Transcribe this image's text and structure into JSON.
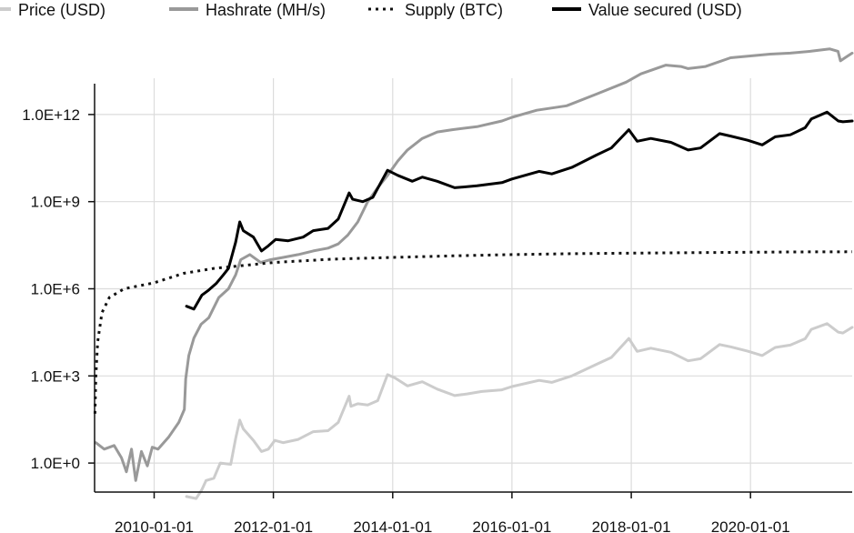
{
  "chart_data": {
    "type": "line",
    "title": "",
    "xlabel": "",
    "ylabel": "",
    "y_scale": "log10",
    "xlim": [
      "2009-01-01",
      "2021-09-15"
    ],
    "ylim": [
      0.1,
      100000000000000.0
    ],
    "grid": true,
    "legend_placement": "top",
    "x_ticks": [
      "2010-01-01",
      "2012-01-01",
      "2014-01-01",
      "2016-01-01",
      "2018-01-01",
      "2020-01-01"
    ],
    "y_ticks": [
      {
        "value": 1,
        "label": "1.0E+0"
      },
      {
        "value": 1000,
        "label": "1.0E+3"
      },
      {
        "value": 1000000,
        "label": "1.0E+6"
      },
      {
        "value": 1000000000,
        "label": "1.0E+9"
      },
      {
        "value": 1000000000000,
        "label": "1.0E+12"
      }
    ],
    "series": [
      {
        "name": "Price (USD)",
        "color": "#cccccc",
        "dash": "solid",
        "points": [
          [
            "2010-07-18",
            0.07
          ],
          [
            "2010-09-15",
            0.06
          ],
          [
            "2010-10-20",
            0.12
          ],
          [
            "2010-11-15",
            0.25
          ],
          [
            "2011-01-01",
            0.3
          ],
          [
            "2011-02-10",
            1.0
          ],
          [
            "2011-04-15",
            0.9
          ],
          [
            "2011-05-15",
            7
          ],
          [
            "2011-06-09",
            30
          ],
          [
            "2011-07-01",
            15
          ],
          [
            "2011-09-01",
            6
          ],
          [
            "2011-10-20",
            2.5
          ],
          [
            "2011-12-01",
            3
          ],
          [
            "2012-01-10",
            6
          ],
          [
            "2012-03-01",
            5
          ],
          [
            "2012-06-01",
            6.5
          ],
          [
            "2012-09-01",
            12
          ],
          [
            "2012-12-01",
            13
          ],
          [
            "2013-02-01",
            25
          ],
          [
            "2013-04-09",
            200
          ],
          [
            "2013-04-20",
            90
          ],
          [
            "2013-06-01",
            110
          ],
          [
            "2013-08-01",
            100
          ],
          [
            "2013-10-01",
            140
          ],
          [
            "2013-11-30",
            1100
          ],
          [
            "2014-01-15",
            850
          ],
          [
            "2014-04-01",
            450
          ],
          [
            "2014-07-01",
            630
          ],
          [
            "2014-10-01",
            350
          ],
          [
            "2015-01-15",
            210
          ],
          [
            "2015-04-01",
            240
          ],
          [
            "2015-07-01",
            290
          ],
          [
            "2015-11-01",
            330
          ],
          [
            "2016-01-01",
            430
          ],
          [
            "2016-06-15",
            700
          ],
          [
            "2016-09-01",
            600
          ],
          [
            "2017-01-01",
            1000
          ],
          [
            "2017-06-01",
            2500
          ],
          [
            "2017-09-01",
            4300
          ],
          [
            "2017-12-17",
            19500
          ],
          [
            "2018-02-06",
            7000
          ],
          [
            "2018-05-01",
            9000
          ],
          [
            "2018-09-01",
            6500
          ],
          [
            "2018-12-15",
            3300
          ],
          [
            "2019-03-01",
            3900
          ],
          [
            "2019-06-26",
            12000
          ],
          [
            "2019-09-01",
            10000
          ],
          [
            "2019-12-15",
            7100
          ],
          [
            "2020-03-13",
            5000
          ],
          [
            "2020-06-01",
            9500
          ],
          [
            "2020-09-01",
            11500
          ],
          [
            "2020-12-01",
            19000
          ],
          [
            "2021-01-08",
            40000
          ],
          [
            "2021-04-14",
            63000
          ],
          [
            "2021-06-22",
            32000
          ],
          [
            "2021-07-20",
            30000
          ],
          [
            "2021-09-15",
            47000
          ]
        ]
      },
      {
        "name": "Hashrate (MH/s)",
        "color": "#999999",
        "dash": "solid",
        "points": [
          [
            "2009-01-09",
            5
          ],
          [
            "2009-03-01",
            3
          ],
          [
            "2009-05-01",
            4
          ],
          [
            "2009-06-15",
            1.5
          ],
          [
            "2009-07-15",
            0.5
          ],
          [
            "2009-08-15",
            3
          ],
          [
            "2009-09-10",
            0.25
          ],
          [
            "2009-10-15",
            2.5
          ],
          [
            "2009-11-20",
            0.8
          ],
          [
            "2009-12-20",
            3.5
          ],
          [
            "2010-01-25",
            3
          ],
          [
            "2010-04-01",
            8
          ],
          [
            "2010-06-01",
            25
          ],
          [
            "2010-07-05",
            70
          ],
          [
            "2010-07-13",
            800
          ],
          [
            "2010-08-01",
            5000
          ],
          [
            "2010-09-01",
            20000
          ],
          [
            "2010-10-15",
            60000
          ],
          [
            "2010-12-01",
            100000
          ],
          [
            "2011-02-01",
            500000
          ],
          [
            "2011-04-01",
            1000000
          ],
          [
            "2011-05-15",
            3000000
          ],
          [
            "2011-06-15",
            10000000
          ],
          [
            "2011-08-10",
            15000000
          ],
          [
            "2011-10-15",
            8000000
          ],
          [
            "2011-12-15",
            10000000
          ],
          [
            "2012-03-01",
            12000000
          ],
          [
            "2012-06-01",
            15000000
          ],
          [
            "2012-09-01",
            20000000
          ],
          [
            "2012-12-01",
            25000000
          ],
          [
            "2013-02-01",
            35000000
          ],
          [
            "2013-04-01",
            70000000
          ],
          [
            "2013-06-01",
            200000000
          ],
          [
            "2013-08-01",
            1000000000
          ],
          [
            "2013-10-01",
            3000000000
          ],
          [
            "2013-12-01",
            8000000000
          ],
          [
            "2014-02-01",
            25000000000
          ],
          [
            "2014-04-01",
            60000000000
          ],
          [
            "2014-07-01",
            150000000000
          ],
          [
            "2014-10-01",
            250000000000
          ],
          [
            "2015-01-01",
            300000000000
          ],
          [
            "2015-06-01",
            380000000000
          ],
          [
            "2015-11-01",
            600000000000
          ],
          [
            "2016-01-01",
            800000000000
          ],
          [
            "2016-06-01",
            1400000000000
          ],
          [
            "2016-12-01",
            2000000000000
          ],
          [
            "2017-06-01",
            5000000000000
          ],
          [
            "2017-12-01",
            13000000000000
          ],
          [
            "2018-03-01",
            25000000000000
          ],
          [
            "2018-08-01",
            50000000000000
          ],
          [
            "2018-11-01",
            45000000000000
          ],
          [
            "2018-12-15",
            38000000000000
          ],
          [
            "2019-04-01",
            45000000000000
          ],
          [
            "2019-09-01",
            90000000000000
          ],
          [
            "2019-12-01",
            100000000000000
          ],
          [
            "2020-05-01",
            120000000000000
          ],
          [
            "2020-09-01",
            130000000000000
          ],
          [
            "2021-01-01",
            150000000000000
          ],
          [
            "2021-05-01",
            180000000000000
          ],
          [
            "2021-06-20",
            150000000000000
          ],
          [
            "2021-07-05",
            70000000000000
          ],
          [
            "2021-08-15",
            100000000000000
          ],
          [
            "2021-09-15",
            130000000000000
          ]
        ]
      },
      {
        "name": "Supply (BTC)",
        "color": "#111111",
        "dash": "dotted",
        "points": [
          [
            "2009-01-03",
            50
          ],
          [
            "2009-01-09",
            1000
          ],
          [
            "2009-01-20",
            15000
          ],
          [
            "2009-02-15",
            150000
          ],
          [
            "2009-04-01",
            500000
          ],
          [
            "2009-07-01",
            1000000
          ],
          [
            "2010-01-01",
            1600000
          ],
          [
            "2010-07-01",
            3400000
          ],
          [
            "2011-01-01",
            5000000
          ],
          [
            "2012-01-01",
            8000000
          ],
          [
            "2013-01-01",
            10500000
          ],
          [
            "2014-01-01",
            12000000
          ],
          [
            "2015-01-01",
            13600000
          ],
          [
            "2016-01-01",
            15000000
          ],
          [
            "2017-01-01",
            16100000
          ],
          [
            "2018-01-01",
            16800000
          ],
          [
            "2019-01-01",
            17500000
          ],
          [
            "2020-01-01",
            18100000
          ],
          [
            "2021-01-01",
            18600000
          ],
          [
            "2021-09-15",
            18830000
          ]
        ]
      },
      {
        "name": "Value secured (USD)",
        "color": "#000000",
        "dash": "solid",
        "points": [
          [
            "2010-07-18",
            250000
          ],
          [
            "2010-09-01",
            200000
          ],
          [
            "2010-10-20",
            600000
          ],
          [
            "2010-12-01",
            900000
          ],
          [
            "2011-01-15",
            1500000
          ],
          [
            "2011-03-01",
            3000000
          ],
          [
            "2011-04-01",
            5000000
          ],
          [
            "2011-05-15",
            40000000
          ],
          [
            "2011-06-09",
            200000000
          ],
          [
            "2011-07-01",
            100000000
          ],
          [
            "2011-09-01",
            60000000
          ],
          [
            "2011-10-20",
            20000000
          ],
          [
            "2011-12-01",
            30000000
          ],
          [
            "2012-01-15",
            50000000
          ],
          [
            "2012-04-01",
            45000000
          ],
          [
            "2012-07-01",
            60000000
          ],
          [
            "2012-09-01",
            100000000
          ],
          [
            "2012-12-01",
            120000000
          ],
          [
            "2013-02-01",
            250000000
          ],
          [
            "2013-04-09",
            2000000000
          ],
          [
            "2013-05-01",
            1200000000
          ],
          [
            "2013-07-01",
            1000000000
          ],
          [
            "2013-09-01",
            1400000000
          ],
          [
            "2013-11-30",
            12000000000
          ],
          [
            "2014-02-01",
            8000000000
          ],
          [
            "2014-05-01",
            5000000000
          ],
          [
            "2014-07-01",
            7000000000
          ],
          [
            "2014-10-01",
            5000000000
          ],
          [
            "2015-01-15",
            3000000000
          ],
          [
            "2015-06-01",
            3500000000
          ],
          [
            "2015-11-01",
            4500000000
          ],
          [
            "2016-01-01",
            6000000000
          ],
          [
            "2016-06-15",
            11000000000
          ],
          [
            "2016-09-01",
            9000000000
          ],
          [
            "2017-01-01",
            15000000000
          ],
          [
            "2017-06-01",
            40000000000
          ],
          [
            "2017-09-01",
            70000000000
          ],
          [
            "2017-12-17",
            300000000000
          ],
          [
            "2018-02-06",
            120000000000
          ],
          [
            "2018-05-01",
            150000000000
          ],
          [
            "2018-09-01",
            110000000000
          ],
          [
            "2018-12-15",
            60000000000
          ],
          [
            "2019-03-01",
            70000000000
          ],
          [
            "2019-06-26",
            220000000000
          ],
          [
            "2019-09-01",
            180000000000
          ],
          [
            "2019-12-15",
            130000000000
          ],
          [
            "2020-03-13",
            90000000000
          ],
          [
            "2020-06-01",
            170000000000
          ],
          [
            "2020-09-01",
            200000000000
          ],
          [
            "2020-12-01",
            350000000000
          ],
          [
            "2021-01-08",
            700000000000
          ],
          [
            "2021-04-14",
            1200000000000
          ],
          [
            "2021-06-22",
            600000000000
          ],
          [
            "2021-07-20",
            560000000000
          ],
          [
            "2021-09-15",
            600000000000
          ]
        ]
      }
    ]
  }
}
